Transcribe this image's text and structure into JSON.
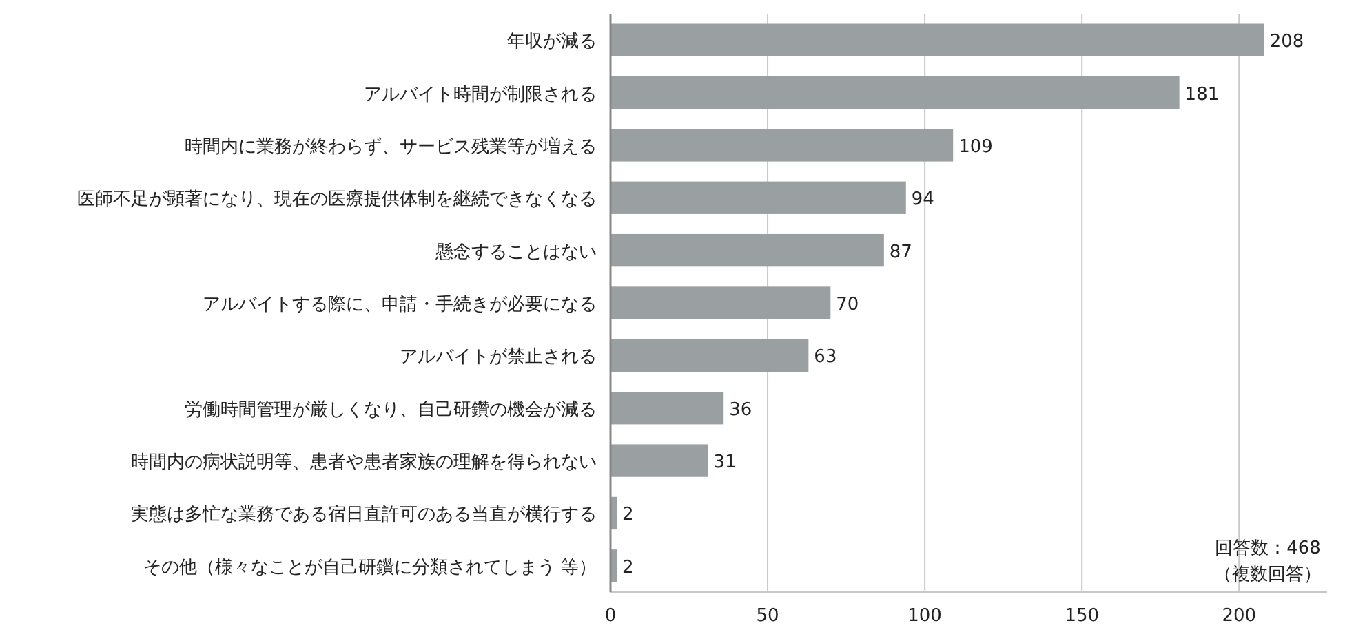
{
  "chart_data": {
    "type": "bar",
    "orientation": "horizontal",
    "categories": [
      "年収が減る",
      "アルバイト時間が制限される",
      "時間内に業務が終わらず、サービス残業等が増える",
      "医師不足が顕著になり、現在の医療提供体制を継続できなくなる",
      "懸念することはない",
      "アルバイトする際に、申請・手続きが必要になる",
      "アルバイトが禁止される",
      "労働時間管理が厳しくなり、自己研鑽の機会が減る",
      "時間内の病状説明等、患者や患者家族の理解を得られない",
      "実態は多忙な業務である宿日直許可のある当直が横行する",
      "その他（様々なことが自己研鑽に分類されてしまう 等）"
    ],
    "values": [
      208,
      181,
      109,
      94,
      87,
      70,
      63,
      36,
      31,
      2,
      2
    ],
    "color": "#9a9fa1",
    "xlim": [
      0,
      228
    ],
    "xticks": [
      0,
      50,
      100,
      150,
      200
    ],
    "grid": "x",
    "data_labels": true,
    "annotations": [
      "回答数：468",
      "（複数回答）"
    ]
  }
}
